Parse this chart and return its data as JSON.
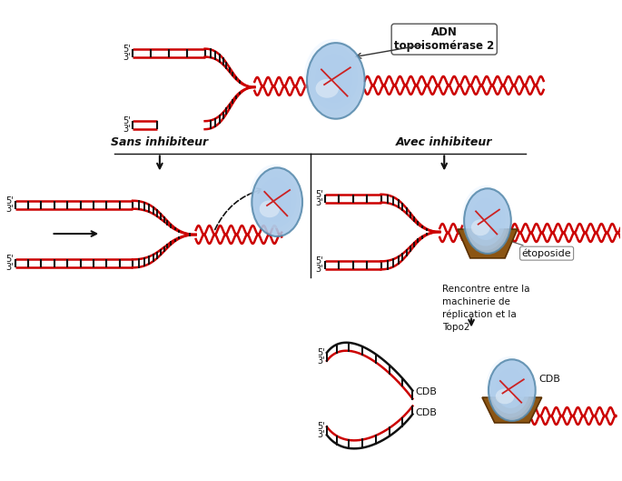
{
  "bg_color": "#ffffff",
  "dna_red": "#cc0000",
  "dna_black": "#111111",
  "topo_fill": "#a8c8e8",
  "topo_edge": "#5588aa",
  "etoposide_fill": "#8B5513",
  "etoposide_edge": "#5a3000",
  "label_sans_inhibiteur": "Sans inhibiteur",
  "label_avec_inhibiteur": "Avec inhibiteur",
  "label_adn_topo": "ADN\ntopoisomérase 2",
  "label_etoposide": "étoposide",
  "label_rencontre": "Rencontre entre la\nmachinerie de\nréplication et la\nTopo2",
  "label_cdb": "CDB"
}
